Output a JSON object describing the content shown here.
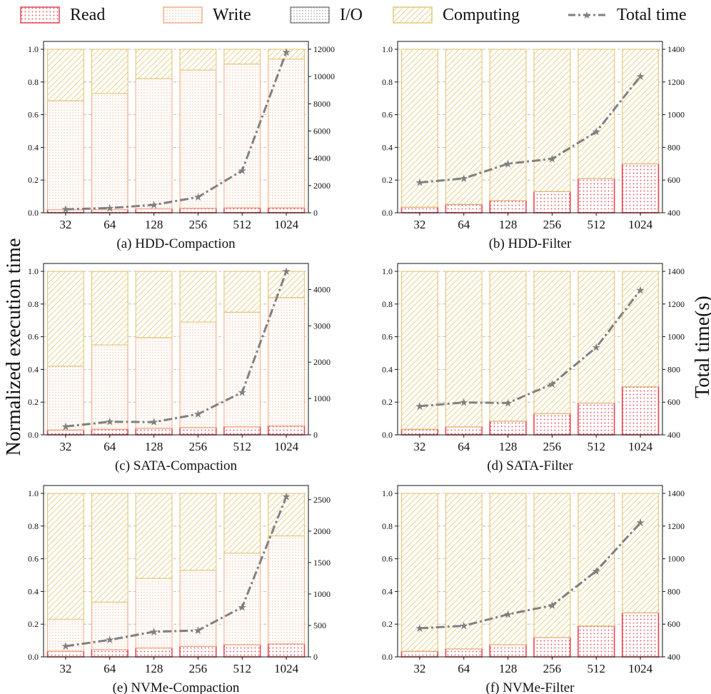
{
  "legend": {
    "read": "Read",
    "write": "Write",
    "io": "I/O",
    "computing": "Computing",
    "total": "Total time"
  },
  "ylabel_left": "Normalized execution time",
  "ylabel_right": "Total time(s)",
  "colors": {
    "read": "#e8454f",
    "write": "#f5b48e",
    "io": "#888888",
    "computing": "#e3c97c",
    "total": "#808080"
  },
  "chart_data": [
    {
      "type": "bar",
      "title": "(a) HDD-Compaction",
      "categories": [
        "32",
        "64",
        "128",
        "256",
        "512",
        "1024"
      ],
      "series": [
        {
          "name": "Read",
          "values": [
            0.02,
            0.02,
            0.025,
            0.028,
            0.03,
            0.03
          ]
        },
        {
          "name": "Write",
          "values": [
            0.665,
            0.71,
            0.795,
            0.845,
            0.88,
            0.91
          ]
        },
        {
          "name": "Computing",
          "values": [
            0.315,
            0.27,
            0.18,
            0.127,
            0.09,
            0.06
          ]
        }
      ],
      "line": {
        "name": "Total time",
        "values": [
          250,
          350,
          580,
          1150,
          3100,
          11800
        ]
      },
      "ylim": [
        0,
        1.0
      ],
      "yticks": [
        "0.0",
        "0.2",
        "0.4",
        "0.6",
        "0.8",
        "1.0"
      ],
      "y2lim": [
        0,
        12000
      ],
      "y2ticks": [
        "0",
        "2000",
        "4000",
        "6000",
        "8000",
        "10000",
        "12000"
      ]
    },
    {
      "type": "bar",
      "title": "(b) HDD-Filter",
      "categories": [
        "32",
        "64",
        "128",
        "256",
        "512",
        "1024"
      ],
      "series": [
        {
          "name": "Read",
          "values": [
            0.035,
            0.052,
            0.075,
            0.13,
            0.21,
            0.3
          ]
        },
        {
          "name": "Write",
          "values": [
            0,
            0,
            0,
            0,
            0,
            0
          ]
        },
        {
          "name": "Computing",
          "values": [
            0.965,
            0.948,
            0.925,
            0.87,
            0.79,
            0.7
          ]
        }
      ],
      "line": {
        "name": "Total time",
        "values": [
          585,
          610,
          700,
          730,
          895,
          1235
        ]
      },
      "ylim": [
        0,
        1.0
      ],
      "yticks": [
        "0.0",
        "0.2",
        "0.4",
        "0.6",
        "0.8",
        "1.0"
      ],
      "y2lim": [
        400,
        1400
      ],
      "y2ticks": [
        "400",
        "600",
        "800",
        "1000",
        "1200",
        "1400"
      ]
    },
    {
      "type": "bar",
      "title": "(c) SATA-Compaction",
      "categories": [
        "32",
        "64",
        "128",
        "256",
        "512",
        "1024"
      ],
      "series": [
        {
          "name": "Read",
          "values": [
            0.03,
            0.035,
            0.04,
            0.045,
            0.05,
            0.055
          ]
        },
        {
          "name": "Write",
          "values": [
            0.39,
            0.515,
            0.555,
            0.645,
            0.7,
            0.785
          ]
        },
        {
          "name": "Computing",
          "values": [
            0.58,
            0.45,
            0.405,
            0.31,
            0.25,
            0.16
          ]
        }
      ],
      "line": {
        "name": "Total time",
        "values": [
          230,
          360,
          350,
          570,
          1170,
          4500
        ]
      },
      "ylim": [
        0,
        1.0
      ],
      "yticks": [
        "0.0",
        "0.2",
        "0.4",
        "0.6",
        "0.8",
        "1.0"
      ],
      "y2lim": [
        0,
        4500
      ],
      "y2ticks": [
        "0",
        "1000",
        "2000",
        "3000",
        "4000"
      ]
    },
    {
      "type": "bar",
      "title": "(d) SATA-Filter",
      "categories": [
        "32",
        "64",
        "128",
        "256",
        "512",
        "1024"
      ],
      "series": [
        {
          "name": "Read",
          "values": [
            0.035,
            0.05,
            0.085,
            0.13,
            0.195,
            0.295
          ]
        },
        {
          "name": "Write",
          "values": [
            0,
            0,
            0,
            0,
            0,
            0
          ]
        },
        {
          "name": "Computing",
          "values": [
            0.965,
            0.95,
            0.915,
            0.87,
            0.805,
            0.705
          ]
        }
      ],
      "line": {
        "name": "Total time",
        "values": [
          575,
          598,
          595,
          710,
          935,
          1285
        ]
      },
      "ylim": [
        0,
        1.0
      ],
      "yticks": [
        "0.0",
        "0.2",
        "0.4",
        "0.6",
        "0.8",
        "1.0"
      ],
      "y2lim": [
        400,
        1400
      ],
      "y2ticks": [
        "400",
        "600",
        "800",
        "1000",
        "1200",
        "1400"
      ]
    },
    {
      "type": "bar",
      "title": "(e) NVMe-Compaction",
      "categories": [
        "32",
        "64",
        "128",
        "256",
        "512",
        "1024"
      ],
      "series": [
        {
          "name": "Read",
          "values": [
            0.035,
            0.045,
            0.055,
            0.065,
            0.075,
            0.08
          ]
        },
        {
          "name": "Write",
          "values": [
            0.195,
            0.29,
            0.425,
            0.465,
            0.56,
            0.66
          ]
        },
        {
          "name": "Computing",
          "values": [
            0.77,
            0.665,
            0.52,
            0.47,
            0.365,
            0.26
          ]
        }
      ],
      "line": {
        "name": "Total time",
        "values": [
          170,
          270,
          400,
          420,
          790,
          2550
        ]
      },
      "ylim": [
        0,
        1.0
      ],
      "yticks": [
        "0.0",
        "0.2",
        "0.4",
        "0.6",
        "0.8",
        "1.0"
      ],
      "y2lim": [
        0,
        2600
      ],
      "y2ticks": [
        "0",
        "500",
        "1000",
        "1500",
        "2000",
        "2500"
      ]
    },
    {
      "type": "bar",
      "title": "(f) NVMe-Filter",
      "categories": [
        "32",
        "64",
        "128",
        "256",
        "512",
        "1024"
      ],
      "series": [
        {
          "name": "Read",
          "values": [
            0.035,
            0.05,
            0.075,
            0.12,
            0.19,
            0.27
          ]
        },
        {
          "name": "Write",
          "values": [
            0,
            0,
            0,
            0,
            0,
            0
          ]
        },
        {
          "name": "Computing",
          "values": [
            0.965,
            0.95,
            0.925,
            0.88,
            0.81,
            0.73
          ]
        }
      ],
      "line": {
        "name": "Total time",
        "values": [
          575,
          590,
          660,
          715,
          925,
          1220
        ]
      },
      "ylim": [
        0,
        1.0
      ],
      "yticks": [
        "0.0",
        "0.2",
        "0.4",
        "0.6",
        "0.8",
        "1.0"
      ],
      "y2lim": [
        400,
        1400
      ],
      "y2ticks": [
        "400",
        "600",
        "800",
        "1000",
        "1200",
        "1400"
      ]
    }
  ]
}
